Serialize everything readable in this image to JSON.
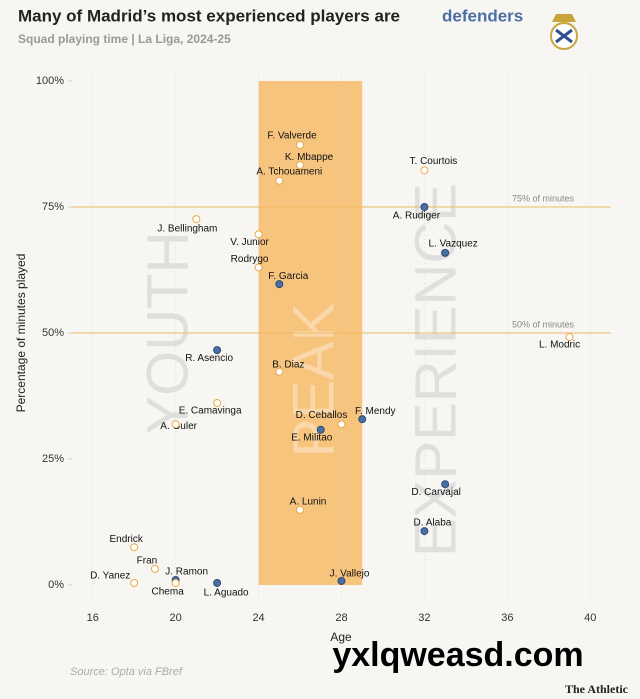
{
  "chart_data": {
    "type": "scatter",
    "title": "Many of Madrid’s most experienced players are",
    "title_highlight": "defenders",
    "subtitle": "Squad playing time | La Liga, 2024-25",
    "x_label": "Age",
    "y_label": "Percentage of minutes played",
    "source": "Source: Opta via FBref",
    "brand": "The Athletic",
    "watermark": "yxlqweasd.com",
    "xlim": [
      15,
      41
    ],
    "ylim": [
      0,
      100
    ],
    "xticks": [
      16,
      20,
      24,
      28,
      32,
      36,
      40
    ],
    "yticks": [
      {
        "value": 0,
        "label": "0%"
      },
      {
        "value": 25,
        "label": "25%"
      },
      {
        "value": 50,
        "label": "50%"
      },
      {
        "value": 75,
        "label": "75%"
      },
      {
        "value": 100,
        "label": "100%"
      }
    ],
    "highlight": {
      "x": [
        24,
        29
      ],
      "color": "#f7c47e"
    },
    "reference_lines": [
      {
        "value": 75,
        "label": "75% of minutes"
      },
      {
        "value": 50,
        "label": "50% of minutes"
      }
    ],
    "zones": [
      "YOUTH",
      "PEAK",
      "EXPERIENCE"
    ],
    "defender_color": "#4a6fa5",
    "other_color": "#ffffff",
    "points": [
      {
        "label": "F. Valverde",
        "x": 26,
        "y": 87.3,
        "defender": false
      },
      {
        "label": "K. Mbappe",
        "x": 26,
        "y": 83.3,
        "defender": false
      },
      {
        "label": "A. Tchouameni",
        "x": 25,
        "y": 80.2,
        "defender": false
      },
      {
        "label": "T. Courtois",
        "x": 32,
        "y": 82.3,
        "defender": false
      },
      {
        "label": "A. Rudiger",
        "x": 32,
        "y": 75,
        "defender": true
      },
      {
        "label": "J. Bellingham",
        "x": 21,
        "y": 72.6,
        "defender": false
      },
      {
        "label": "V. Junior",
        "x": 24,
        "y": 69.6,
        "defender": false
      },
      {
        "label": "Rodrygo",
        "x": 24,
        "y": 63,
        "defender": false
      },
      {
        "label": "L. Vazquez",
        "x": 33,
        "y": 65.9,
        "defender": true
      },
      {
        "label": "F. Garcia",
        "x": 25,
        "y": 59.7,
        "defender": true
      },
      {
        "label": "L. Modric",
        "x": 39,
        "y": 49.2,
        "defender": false
      },
      {
        "label": "R. Asencio",
        "x": 22,
        "y": 46.6,
        "defender": true
      },
      {
        "label": "B. Diaz",
        "x": 25,
        "y": 42.3,
        "defender": false
      },
      {
        "label": "E. Camavinga",
        "x": 22,
        "y": 36.1,
        "defender": false
      },
      {
        "label": "A. Guler",
        "x": 20,
        "y": 31.9,
        "defender": false
      },
      {
        "label": "D. Ceballos",
        "x": 28,
        "y": 31.9,
        "defender": false
      },
      {
        "label": "F. Mendy",
        "x": 29,
        "y": 32.9,
        "defender": true
      },
      {
        "label": "E. Militao",
        "x": 27,
        "y": 30.8,
        "defender": true
      },
      {
        "label": "D. Carvajal",
        "x": 33,
        "y": 20,
        "defender": true
      },
      {
        "label": "A. Lunin",
        "x": 26,
        "y": 14.9,
        "defender": false
      },
      {
        "label": "D. Alaba",
        "x": 32,
        "y": 10.7,
        "defender": true
      },
      {
        "label": "Endrick",
        "x": 18,
        "y": 7.5,
        "defender": false
      },
      {
        "label": "Fran",
        "x": 19,
        "y": 3.2,
        "defender": false
      },
      {
        "label": "J. Ramon",
        "x": 20,
        "y": 1,
        "defender": true
      },
      {
        "label": "D. Yanez",
        "x": 18,
        "y": 0.4,
        "defender": false
      },
      {
        "label": "Chema",
        "x": 20,
        "y": 0.4,
        "defender": false
      },
      {
        "label": "L. Aguado",
        "x": 22,
        "y": 0.4,
        "defender": true
      },
      {
        "label": "J. Vallejo",
        "x": 28,
        "y": 0.8,
        "defender": true
      }
    ]
  }
}
